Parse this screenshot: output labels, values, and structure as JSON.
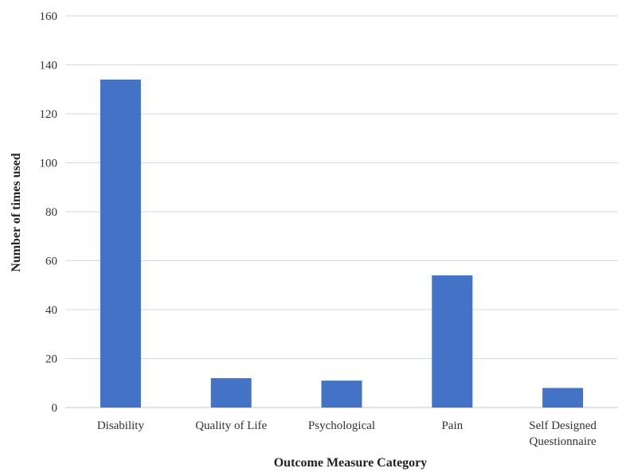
{
  "chart_data": {
    "type": "bar",
    "title": "",
    "xlabel": "Outcome Measure Category",
    "ylabel": "Number of times used",
    "categories": [
      [
        "Disability"
      ],
      [
        "Quality of Life"
      ],
      [
        "Psychological"
      ],
      [
        "Pain"
      ],
      [
        "Self Designed",
        "Questionnaire"
      ]
    ],
    "values": [
      134,
      12,
      11,
      54,
      8
    ],
    "ylim": [
      0,
      160
    ],
    "yticks": [
      0,
      20,
      40,
      60,
      80,
      100,
      120,
      140,
      160
    ],
    "grid": true,
    "legend": "none",
    "bar_color": "#4472C4",
    "grid_color": "#d9d9d9"
  }
}
